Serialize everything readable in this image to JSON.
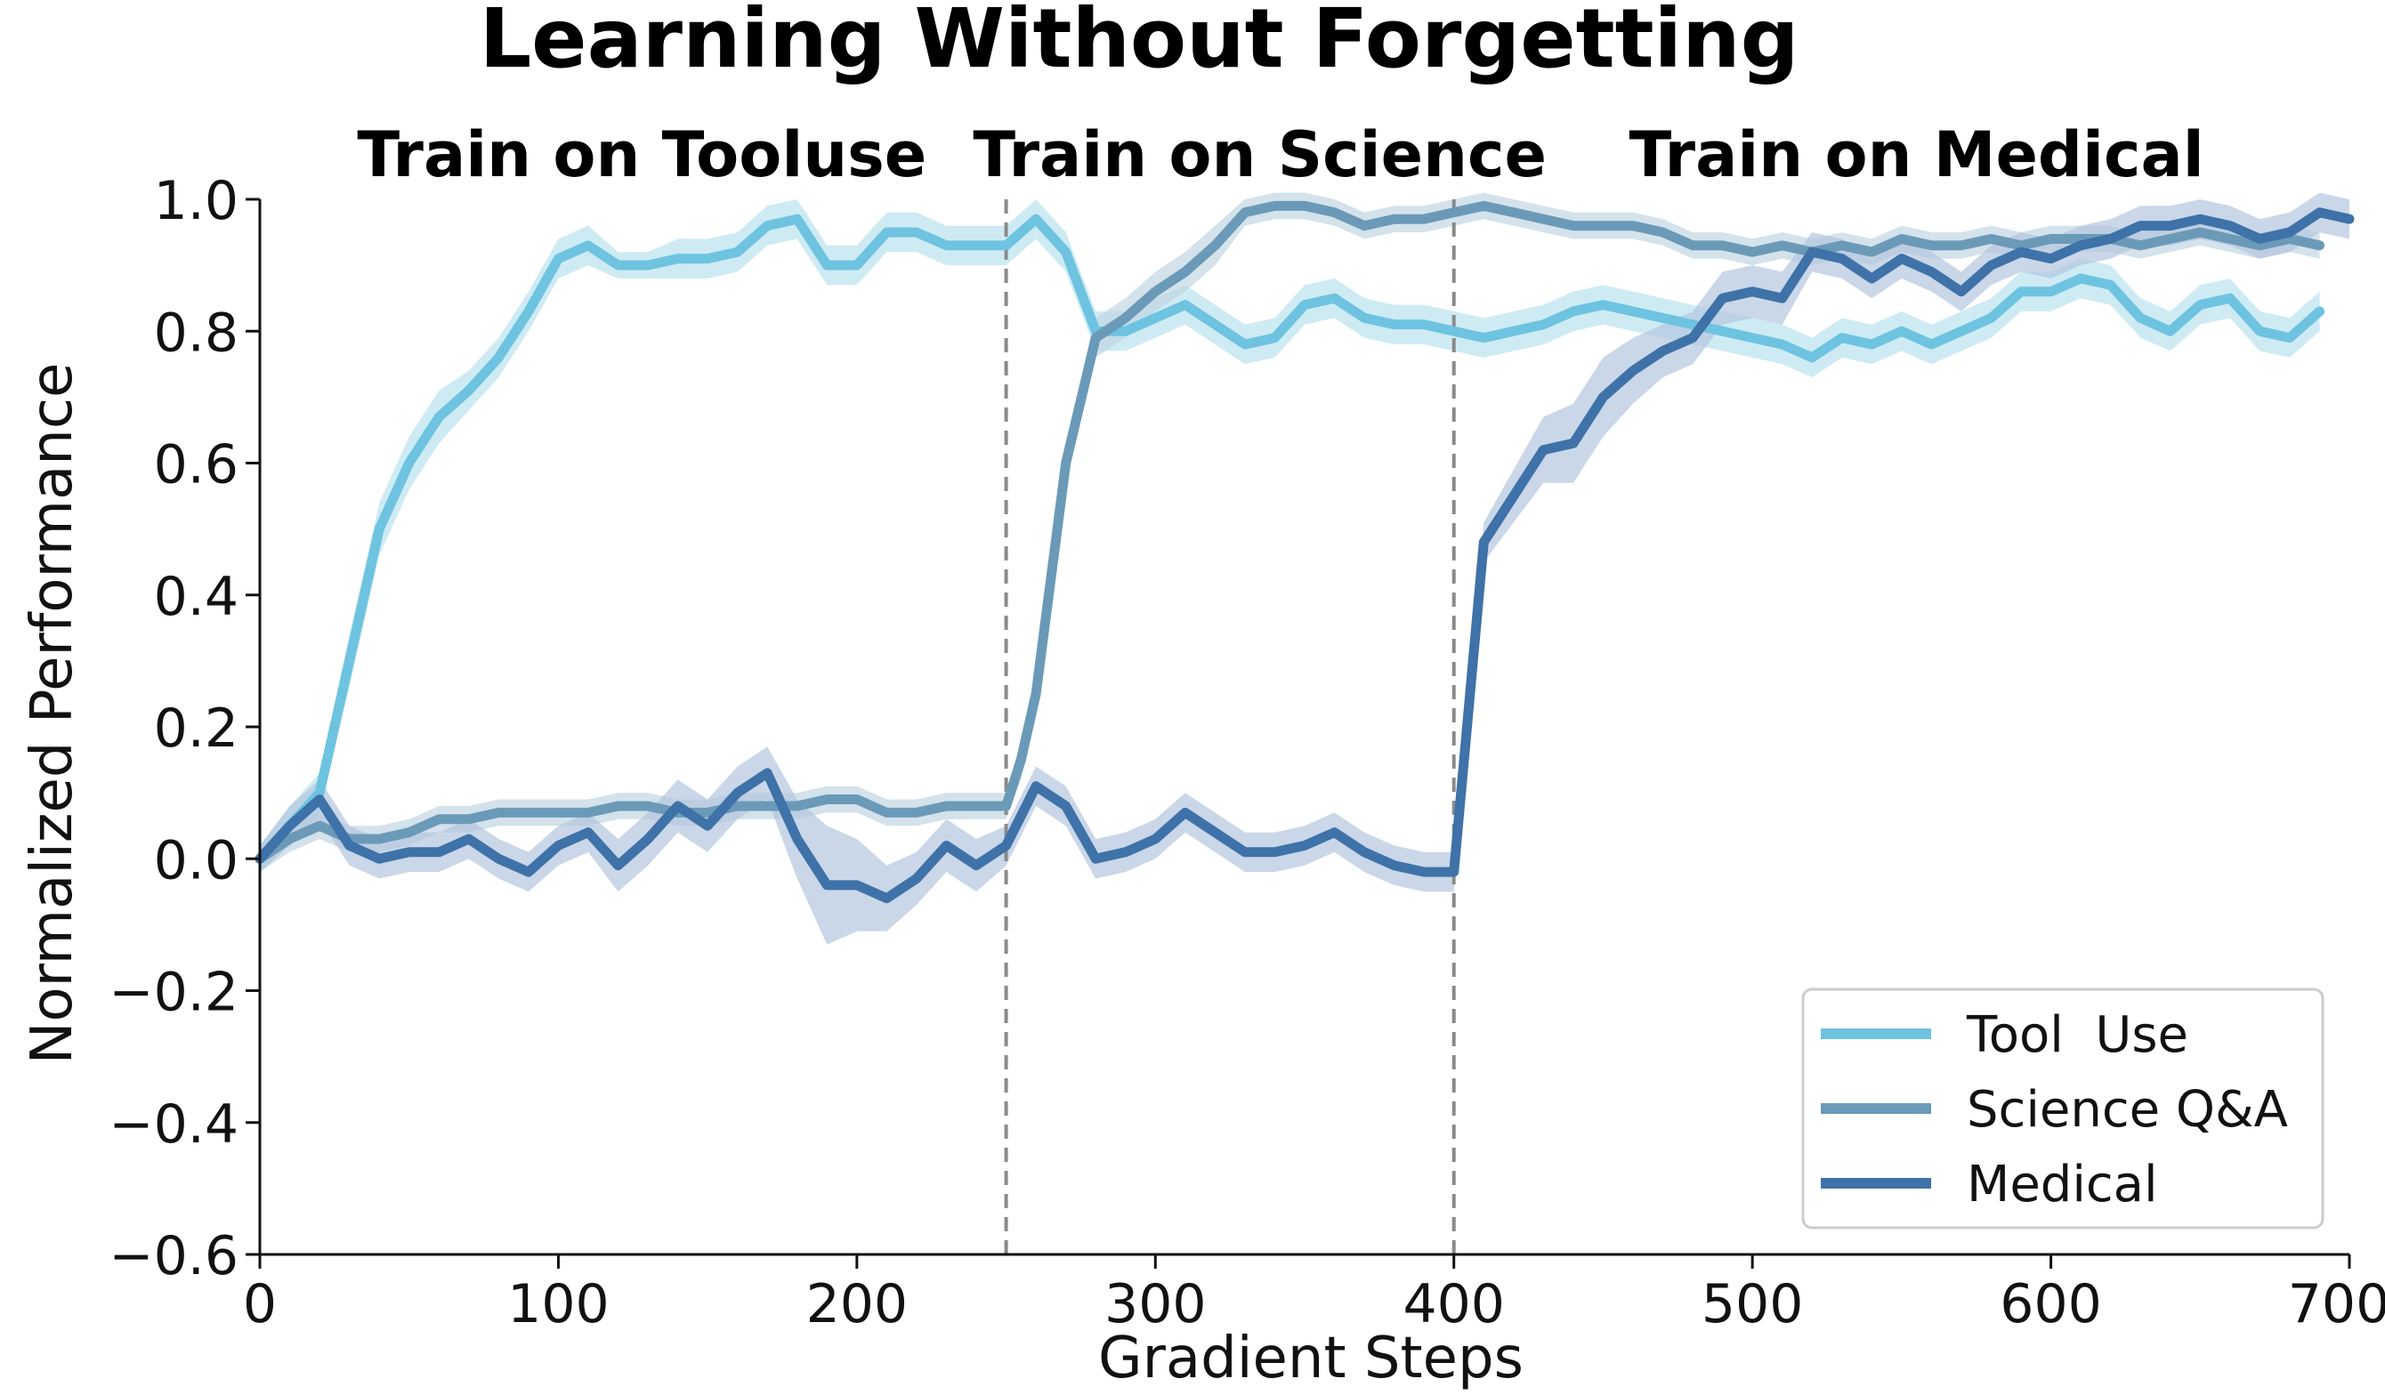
{
  "chart_data": {
    "type": "line",
    "title": "Learning Without Forgetting",
    "xlabel": "Gradient Steps",
    "ylabel": "Normalized Performance",
    "xlim": [
      0,
      700
    ],
    "ylim": [
      -0.6,
      1.0
    ],
    "xticks": [
      0,
      100,
      200,
      300,
      400,
      500,
      600,
      700
    ],
    "xtick_labels": [
      "0",
      "100",
      "200",
      "300",
      "400",
      "500",
      "600",
      "700"
    ],
    "yticks": [
      -0.6,
      -0.4,
      -0.2,
      0.0,
      0.2,
      0.4,
      0.6,
      0.8,
      1.0
    ],
    "ytick_labels": [
      "−0.6",
      "−0.4",
      "−0.2",
      "0.0",
      "0.2",
      "0.4",
      "0.6",
      "0.8",
      "1.0"
    ],
    "phase_boundaries": [
      250,
      400
    ],
    "phases": [
      {
        "label": "Train on Tooluse",
        "center": 128
      },
      {
        "label": "Train on Science",
        "center": 335
      },
      {
        "label": "Train on Medical",
        "center": 555
      }
    ],
    "legend_position": "bottom-right",
    "series": [
      {
        "name": "Tool  Use",
        "color": "#6ec3e0",
        "band_color": "#b9e2f0",
        "x": [
          0,
          10,
          20,
          30,
          40,
          50,
          60,
          70,
          80,
          90,
          100,
          110,
          120,
          130,
          140,
          150,
          160,
          170,
          180,
          190,
          200,
          210,
          220,
          230,
          240,
          250,
          260,
          270,
          280,
          290,
          300,
          310,
          320,
          330,
          340,
          350,
          360,
          370,
          380,
          390,
          400,
          410,
          420,
          430,
          440,
          450,
          460,
          470,
          480,
          490,
          500,
          510,
          520,
          530,
          540,
          550,
          560,
          570,
          580,
          590,
          600,
          610,
          620,
          630,
          640,
          650,
          660,
          670,
          680,
          690
        ],
        "y": [
          0.0,
          0.05,
          0.1,
          0.3,
          0.5,
          0.6,
          0.67,
          0.71,
          0.76,
          0.83,
          0.91,
          0.93,
          0.9,
          0.9,
          0.91,
          0.91,
          0.92,
          0.96,
          0.97,
          0.9,
          0.9,
          0.95,
          0.95,
          0.93,
          0.93,
          0.93,
          0.97,
          0.92,
          0.8,
          0.8,
          0.82,
          0.84,
          0.81,
          0.78,
          0.79,
          0.84,
          0.85,
          0.82,
          0.81,
          0.81,
          0.8,
          0.79,
          0.8,
          0.81,
          0.83,
          0.84,
          0.83,
          0.82,
          0.81,
          0.8,
          0.79,
          0.78,
          0.76,
          0.79,
          0.78,
          0.8,
          0.78,
          0.8,
          0.82,
          0.86,
          0.86,
          0.88,
          0.87,
          0.82,
          0.8,
          0.84,
          0.85,
          0.8,
          0.79,
          0.83
        ],
        "spread": [
          0.02,
          0.03,
          0.03,
          0.04,
          0.04,
          0.04,
          0.04,
          0.03,
          0.03,
          0.03,
          0.03,
          0.03,
          0.02,
          0.02,
          0.03,
          0.03,
          0.03,
          0.03,
          0.03,
          0.03,
          0.03,
          0.03,
          0.03,
          0.03,
          0.03,
          0.03,
          0.03,
          0.03,
          0.03,
          0.03,
          0.03,
          0.03,
          0.03,
          0.03,
          0.03,
          0.03,
          0.03,
          0.03,
          0.03,
          0.03,
          0.03,
          0.03,
          0.03,
          0.03,
          0.03,
          0.03,
          0.03,
          0.03,
          0.03,
          0.03,
          0.03,
          0.03,
          0.03,
          0.03,
          0.03,
          0.03,
          0.03,
          0.03,
          0.03,
          0.03,
          0.03,
          0.03,
          0.03,
          0.03,
          0.03,
          0.03,
          0.03,
          0.03,
          0.03,
          0.03
        ]
      },
      {
        "name": "Science Q&A",
        "color": "#6a9ab8",
        "band_color": "#c2d6e3",
        "x": [
          0,
          10,
          20,
          30,
          40,
          50,
          60,
          70,
          80,
          90,
          100,
          110,
          120,
          130,
          140,
          150,
          160,
          170,
          180,
          190,
          200,
          210,
          220,
          230,
          240,
          250,
          255,
          260,
          270,
          280,
          290,
          300,
          310,
          320,
          330,
          340,
          350,
          360,
          370,
          380,
          390,
          400,
          410,
          420,
          430,
          440,
          450,
          460,
          470,
          480,
          490,
          500,
          510,
          520,
          530,
          540,
          550,
          560,
          570,
          580,
          590,
          600,
          610,
          620,
          630,
          640,
          650,
          660,
          670,
          680,
          690
        ],
        "y": [
          0.0,
          0.03,
          0.05,
          0.03,
          0.03,
          0.04,
          0.06,
          0.06,
          0.07,
          0.07,
          0.07,
          0.07,
          0.08,
          0.08,
          0.07,
          0.07,
          0.08,
          0.08,
          0.08,
          0.09,
          0.09,
          0.07,
          0.07,
          0.08,
          0.08,
          0.08,
          0.15,
          0.25,
          0.6,
          0.79,
          0.82,
          0.86,
          0.89,
          0.93,
          0.98,
          0.99,
          0.99,
          0.98,
          0.96,
          0.97,
          0.97,
          0.98,
          0.99,
          0.98,
          0.97,
          0.96,
          0.96,
          0.96,
          0.95,
          0.93,
          0.93,
          0.92,
          0.93,
          0.92,
          0.93,
          0.92,
          0.94,
          0.93,
          0.93,
          0.94,
          0.93,
          0.94,
          0.94,
          0.94,
          0.93,
          0.94,
          0.95,
          0.94,
          0.93,
          0.94,
          0.93
        ],
        "spread": [
          0.02,
          0.02,
          0.02,
          0.02,
          0.02,
          0.02,
          0.02,
          0.02,
          0.02,
          0.02,
          0.02,
          0.02,
          0.02,
          0.02,
          0.02,
          0.02,
          0.02,
          0.02,
          0.02,
          0.02,
          0.02,
          0.02,
          0.02,
          0.02,
          0.02,
          0.02,
          0.03,
          0.03,
          0.03,
          0.03,
          0.03,
          0.03,
          0.03,
          0.03,
          0.02,
          0.02,
          0.02,
          0.02,
          0.02,
          0.02,
          0.02,
          0.02,
          0.02,
          0.02,
          0.02,
          0.02,
          0.02,
          0.02,
          0.02,
          0.02,
          0.02,
          0.02,
          0.02,
          0.02,
          0.02,
          0.02,
          0.02,
          0.02,
          0.02,
          0.02,
          0.02,
          0.02,
          0.02,
          0.02,
          0.02,
          0.02,
          0.02,
          0.02,
          0.02,
          0.02,
          0.02
        ]
      },
      {
        "name": "Medical",
        "color": "#3e72a8",
        "band_color": "#b4c6de",
        "x": [
          0,
          10,
          20,
          30,
          40,
          50,
          60,
          70,
          80,
          90,
          100,
          110,
          120,
          130,
          140,
          150,
          160,
          170,
          180,
          190,
          200,
          210,
          220,
          230,
          240,
          250,
          260,
          270,
          280,
          290,
          300,
          310,
          320,
          330,
          340,
          350,
          360,
          370,
          380,
          390,
          400,
          410,
          420,
          430,
          440,
          450,
          460,
          470,
          480,
          490,
          500,
          510,
          520,
          530,
          540,
          550,
          560,
          570,
          580,
          590,
          600,
          610,
          620,
          630,
          640,
          650,
          660,
          670,
          680,
          690,
          700
        ],
        "y": [
          0.0,
          0.05,
          0.09,
          0.02,
          0.0,
          0.01,
          0.01,
          0.03,
          0.0,
          -0.02,
          0.02,
          0.04,
          -0.01,
          0.03,
          0.08,
          0.05,
          0.1,
          0.13,
          0.03,
          -0.04,
          -0.04,
          -0.06,
          -0.03,
          0.02,
          -0.01,
          0.02,
          0.11,
          0.08,
          0.0,
          0.01,
          0.03,
          0.07,
          0.04,
          0.01,
          0.01,
          0.02,
          0.04,
          0.01,
          -0.01,
          -0.02,
          -0.02,
          0.48,
          0.55,
          0.62,
          0.63,
          0.7,
          0.74,
          0.77,
          0.79,
          0.85,
          0.86,
          0.85,
          0.92,
          0.91,
          0.88,
          0.91,
          0.89,
          0.86,
          0.9,
          0.92,
          0.91,
          0.93,
          0.94,
          0.96,
          0.96,
          0.97,
          0.96,
          0.94,
          0.95,
          0.98,
          0.97
        ],
        "spread": [
          0.02,
          0.03,
          0.03,
          0.03,
          0.03,
          0.03,
          0.03,
          0.03,
          0.03,
          0.03,
          0.03,
          0.03,
          0.04,
          0.04,
          0.04,
          0.04,
          0.04,
          0.04,
          0.06,
          0.09,
          0.07,
          0.05,
          0.04,
          0.04,
          0.04,
          0.03,
          0.03,
          0.03,
          0.03,
          0.03,
          0.03,
          0.03,
          0.03,
          0.03,
          0.03,
          0.03,
          0.03,
          0.03,
          0.03,
          0.03,
          0.03,
          0.03,
          0.04,
          0.05,
          0.06,
          0.06,
          0.05,
          0.04,
          0.04,
          0.04,
          0.04,
          0.04,
          0.03,
          0.03,
          0.03,
          0.03,
          0.03,
          0.03,
          0.03,
          0.03,
          0.03,
          0.03,
          0.03,
          0.03,
          0.03,
          0.03,
          0.03,
          0.03,
          0.03,
          0.03,
          0.03
        ]
      }
    ]
  }
}
